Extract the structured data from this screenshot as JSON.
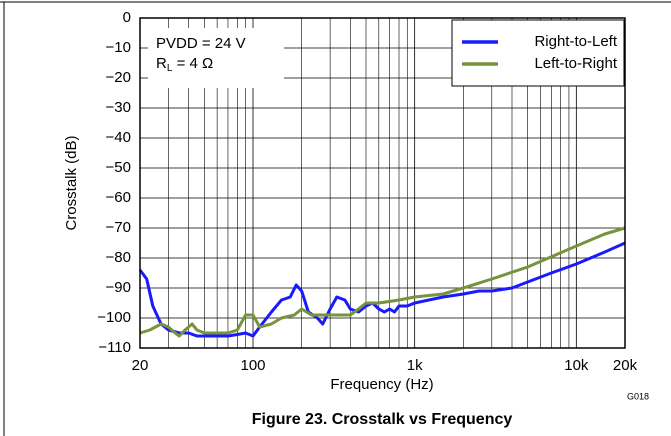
{
  "chart_data": {
    "type": "line",
    "title": "Figure 23. Crosstalk vs Frequency",
    "x_label": "Frequency (Hz)",
    "y_label": "Crosstalk (dB)",
    "annotations": [
      "PVDD = 24 V",
      "RL = 4 Ω"
    ],
    "figure_id": "G018",
    "xscale": "log",
    "xlim": [
      20,
      20000
    ],
    "ylim": [
      -110,
      0
    ],
    "xticks": [
      20,
      100,
      {
        "value": 1000,
        "label": "1k"
      },
      {
        "value": 10000,
        "label": "10k"
      },
      {
        "value": 20000,
        "label": "20k"
      }
    ],
    "xgrid": [
      30,
      40,
      50,
      60,
      70,
      80,
      90,
      200,
      300,
      400,
      500,
      600,
      700,
      800,
      900,
      2000,
      3000,
      4000,
      5000,
      6000,
      7000,
      8000,
      9000
    ],
    "yticks": [
      0,
      {
        "value": -10,
        "label": "−10"
      },
      {
        "value": -20,
        "label": "−20"
      },
      {
        "value": -30,
        "label": "−30"
      },
      {
        "value": -40,
        "label": "−40"
      },
      {
        "value": -50,
        "label": "−50"
      },
      {
        "value": -60,
        "label": "−60"
      },
      {
        "value": -70,
        "label": "−70"
      },
      {
        "value": -80,
        "label": "−80"
      },
      {
        "value": -90,
        "label": "−90"
      },
      {
        "value": -100,
        "label": "−100"
      },
      {
        "value": -110,
        "label": "−110"
      }
    ],
    "grid": true,
    "legend": "upper right",
    "series": [
      {
        "name": "Right-to-Left",
        "color": "#1a1aff",
        "x": [
          20,
          22,
          24,
          27,
          30,
          35,
          40,
          45,
          50,
          60,
          70,
          80,
          90,
          100,
          110,
          130,
          150,
          170,
          185,
          200,
          220,
          250,
          270,
          300,
          330,
          370,
          400,
          450,
          500,
          550,
          600,
          650,
          700,
          750,
          800,
          900,
          1000,
          1500,
          2000,
          2500,
          3000,
          4000,
          5000,
          7000,
          10000,
          15000,
          20000
        ],
        "values": [
          -84,
          -87,
          -96,
          -102,
          -104,
          -105,
          -105,
          -106,
          -106,
          -106,
          -106,
          -105.5,
          -105,
          -106,
          -103,
          -98,
          -94,
          -93,
          -89,
          -91,
          -98,
          -100,
          -102,
          -97,
          -93,
          -94,
          -97,
          -98,
          -96,
          -95,
          -97,
          -98,
          -97,
          -98,
          -96,
          -96,
          -95,
          -93,
          -92,
          -91,
          -91,
          -90,
          -88,
          -85,
          -82,
          -78,
          -75
        ]
      },
      {
        "name": "Left-to-Right",
        "color": "#77933c",
        "x": [
          20,
          23,
          27,
          30,
          33,
          35,
          38,
          42,
          45,
          50,
          60,
          70,
          80,
          90,
          100,
          110,
          130,
          150,
          180,
          200,
          230,
          300,
          400,
          450,
          500,
          600,
          800,
          1000,
          1500,
          2000,
          3000,
          5000,
          10000,
          15000,
          20000
        ],
        "values": [
          -105,
          -104,
          -102,
          -103,
          -105,
          -106,
          -104,
          -102,
          -104,
          -105,
          -105,
          -105,
          -104,
          -99,
          -99,
          -103,
          -102,
          -100,
          -99,
          -97,
          -99,
          -99,
          -99,
          -97,
          -95,
          -95,
          -94,
          -93,
          -92,
          -90,
          -87,
          -83,
          -76,
          -72,
          -70
        ]
      }
    ]
  }
}
